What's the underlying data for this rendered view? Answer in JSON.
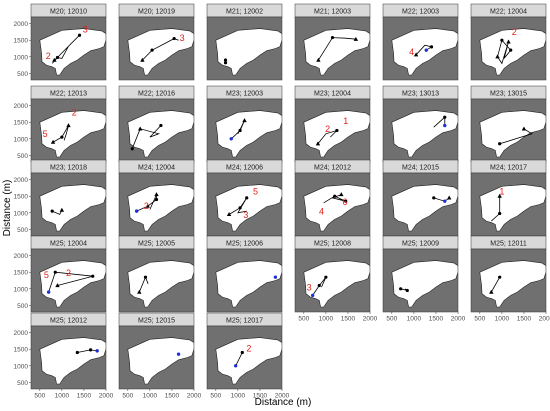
{
  "chart_data": {
    "type": "scatter",
    "layout": "faceted small multiples with path lines",
    "xlabel": "Distance (m)",
    "ylabel": "Distance (m)",
    "xlim": [
      300,
      2000
    ],
    "ylim": [
      300,
      2200
    ],
    "x_ticks": [
      500,
      1000,
      1500,
      2000
    ],
    "y_ticks": [
      500,
      1000,
      1500,
      2000
    ],
    "colors": {
      "panel_background": "#707070",
      "water": "#ffffff",
      "strip": "#d9d9d9",
      "path": "#000000",
      "label": "#e0211b",
      "end_point": "#1c2fd8"
    },
    "panels": [
      {
        "title": "M20; 12010",
        "points": [
          [
            830,
            900
          ],
          [
            900,
            980
          ],
          [
            1000,
            950
          ],
          [
            1150,
            1320
          ],
          [
            1400,
            1650
          ],
          [
            950,
            1050
          ],
          [
            780,
            800
          ]
        ],
        "markers": [
          [
            830,
            900,
            "tri"
          ],
          [
            900,
            980,
            "dot"
          ],
          [
            1400,
            1650,
            "dot"
          ]
        ],
        "labels": [
          [
            "2",
            690,
            930
          ],
          [
            "3",
            1530,
            1740
          ]
        ],
        "end": []
      },
      {
        "title": "M20; 12019",
        "points": [
          [
            830,
            900
          ],
          [
            1050,
            1200
          ],
          [
            1550,
            1550
          ],
          [
            1650,
            1500
          ]
        ],
        "markers": [
          [
            830,
            900,
            "tri"
          ],
          [
            1050,
            1200,
            "dot"
          ],
          [
            1550,
            1550,
            "dot"
          ]
        ],
        "labels": [
          [
            "3",
            1730,
            1470
          ]
        ],
        "end": []
      },
      {
        "title": "M21; 12002",
        "points": [
          [
            720,
            820
          ],
          [
            720,
            950
          ],
          [
            720,
            900
          ]
        ],
        "markers": [
          [
            720,
            820,
            "dot"
          ],
          [
            720,
            900,
            "dot"
          ]
        ],
        "labels": [],
        "end": []
      },
      {
        "title": "M21; 12003",
        "points": [
          [
            830,
            900
          ],
          [
            1150,
            1580
          ],
          [
            1450,
            1560
          ],
          [
            1680,
            1530
          ]
        ],
        "markers": [
          [
            830,
            900,
            "tri"
          ],
          [
            1150,
            1580,
            "dot"
          ],
          [
            1680,
            1530,
            "tri"
          ]
        ],
        "labels": [],
        "end": []
      },
      {
        "title": "M22; 12003",
        "points": [
          [
            1050,
            1060
          ],
          [
            1250,
            1350
          ],
          [
            1400,
            1300
          ],
          [
            1280,
            1200
          ]
        ],
        "markers": [
          [
            1050,
            1060,
            "tri"
          ],
          [
            1400,
            1300,
            "dot"
          ]
        ],
        "labels": [
          [
            "4",
            950,
            1060
          ]
        ],
        "end": [
          [
            1280,
            1200
          ]
        ]
      },
      {
        "title": "M22; 12004",
        "points": [
          [
            900,
            1000
          ],
          [
            1000,
            1500
          ],
          [
            1200,
            1200
          ],
          [
            1050,
            950
          ],
          [
            1150,
            1450
          ],
          [
            1000,
            800
          ],
          [
            900,
            1000
          ]
        ],
        "markers": [
          [
            900,
            1000,
            "tri"
          ],
          [
            1000,
            1500,
            "dot"
          ],
          [
            1200,
            1200,
            "dot"
          ],
          [
            1150,
            1450,
            "tri"
          ]
        ],
        "labels": [
          [
            "2",
            1280,
            1650
          ]
        ],
        "end": []
      },
      {
        "title": "M22; 12013",
        "points": [
          [
            800,
            900
          ],
          [
            1000,
            1050
          ],
          [
            1150,
            1400
          ],
          [
            1100,
            1150
          ],
          [
            1050,
            950
          ]
        ],
        "markers": [
          [
            800,
            900,
            "tri"
          ],
          [
            1000,
            1050,
            "dot"
          ],
          [
            1150,
            1400,
            "tri"
          ]
        ],
        "labels": [
          [
            "2",
            1280,
            1700
          ],
          [
            "5",
            620,
            1050
          ]
        ],
        "end": []
      },
      {
        "title": "M22; 12016",
        "points": [
          [
            600,
            700
          ],
          [
            780,
            1300
          ],
          [
            1200,
            1150
          ],
          [
            1000,
            1050
          ],
          [
            1250,
            1400
          ]
        ],
        "markers": [
          [
            600,
            700,
            "dot"
          ],
          [
            780,
            1300,
            "tri"
          ],
          [
            1250,
            1400,
            "dot"
          ]
        ],
        "labels": [],
        "end": []
      },
      {
        "title": "M23; 12003",
        "points": [
          [
            850,
            1000
          ],
          [
            1050,
            1250
          ],
          [
            1150,
            1550
          ],
          [
            1000,
            1150
          ]
        ],
        "markers": [
          [
            1050,
            1250,
            "dot"
          ],
          [
            1150,
            1550,
            "tri"
          ]
        ],
        "labels": [],
        "end": [
          [
            850,
            1000
          ]
        ]
      },
      {
        "title": "M23; 12004",
        "points": [
          [
            820,
            850
          ],
          [
            1000,
            1150
          ],
          [
            1250,
            1250
          ],
          [
            1100,
            1050
          ]
        ],
        "markers": [
          [
            820,
            850,
            "tri"
          ],
          [
            1250,
            1250,
            "dot"
          ]
        ],
        "labels": [
          [
            "2",
            1040,
            1200
          ],
          [
            "1",
            1450,
            1450
          ]
        ],
        "end": []
      },
      {
        "title": "M23; 13013",
        "points": [
          [
            1450,
            1350
          ],
          [
            1700,
            1650
          ],
          [
            1700,
            1400
          ]
        ],
        "markers": [
          [
            1700,
            1650,
            "dot"
          ]
        ],
        "labels": [],
        "end": [
          [
            1700,
            1400
          ]
        ]
      },
      {
        "title": "M23; 13015",
        "points": [
          [
            950,
            850
          ],
          [
            1680,
            1150
          ],
          [
            1500,
            1300
          ]
        ],
        "markers": [
          [
            950,
            850,
            "dot"
          ],
          [
            1500,
            1300,
            "tri"
          ]
        ],
        "labels": [],
        "end": []
      },
      {
        "title": "M23; 12018",
        "points": [
          [
            780,
            1050
          ],
          [
            950,
            950
          ],
          [
            1000,
            1080
          ]
        ],
        "markers": [
          [
            780,
            1050,
            "dot"
          ],
          [
            1000,
            1080,
            "tri"
          ]
        ],
        "labels": [],
        "end": []
      },
      {
        "title": "M24; 12004",
        "points": [
          [
            700,
            1050
          ],
          [
            950,
            1200
          ],
          [
            1150,
            1400
          ],
          [
            1150,
            1550
          ],
          [
            1000,
            1100
          ]
        ],
        "markers": [
          [
            950,
            1200,
            "tri"
          ],
          [
            1150,
            1400,
            "dot"
          ],
          [
            1150,
            1550,
            "tri"
          ]
        ],
        "labels": [
          [
            "2",
            920,
            1120
          ]
        ],
        "end": [
          [
            700,
            1050
          ]
        ]
      },
      {
        "title": "M24; 12006",
        "points": [
          [
            800,
            950
          ],
          [
            1050,
            1150
          ],
          [
            1200,
            1450
          ],
          [
            1000,
            1000
          ],
          [
            1200,
            1050
          ]
        ],
        "markers": [
          [
            800,
            950,
            "tri"
          ],
          [
            1050,
            1150,
            "dot"
          ],
          [
            1200,
            1450,
            "dot"
          ]
        ],
        "labels": [
          [
            "5",
            1400,
            1550
          ],
          [
            "3",
            1180,
            850
          ]
        ],
        "end": []
      },
      {
        "title": "M24; 12012",
        "points": [
          [
            950,
            1300
          ],
          [
            1200,
            1500
          ],
          [
            1450,
            1350
          ],
          [
            1150,
            1450
          ],
          [
            1350,
            1550
          ]
        ],
        "markers": [
          [
            1200,
            1500,
            "dot"
          ],
          [
            1450,
            1350,
            "dot"
          ],
          [
            1350,
            1550,
            "tri"
          ]
        ],
        "labels": [
          [
            "4",
            900,
            950
          ],
          [
            "6",
            1430,
            1230
          ]
        ],
        "end": []
      },
      {
        "title": "M24; 12015",
        "points": [
          [
            1450,
            1450
          ],
          [
            1700,
            1350
          ],
          [
            1800,
            1450
          ]
        ],
        "markers": [
          [
            1450,
            1450,
            "dot"
          ],
          [
            1800,
            1450,
            "tri"
          ]
        ],
        "labels": [],
        "end": [
          [
            1700,
            1350
          ]
        ]
      },
      {
        "title": "M24; 12017",
        "points": [
          [
            760,
            750
          ],
          [
            950,
            980
          ],
          [
            950,
            1500
          ]
        ],
        "markers": [
          [
            950,
            980,
            "dot"
          ],
          [
            950,
            1500,
            "tri"
          ]
        ],
        "labels": [
          [
            "1",
            1000,
            1550
          ]
        ],
        "end": []
      },
      {
        "title": "M25; 12004",
        "points": [
          [
            700,
            900
          ],
          [
            850,
            1500
          ],
          [
            1700,
            1380
          ],
          [
            900,
            1100
          ]
        ],
        "markers": [
          [
            850,
            1500,
            "dot"
          ],
          [
            1700,
            1380,
            "dot"
          ],
          [
            900,
            1100,
            "tri"
          ]
        ],
        "labels": [
          [
            "5",
            650,
            1320
          ],
          [
            "2",
            1150,
            1380
          ]
        ],
        "end": [
          [
            700,
            900
          ]
        ]
      },
      {
        "title": "M25; 12005",
        "points": [
          [
            760,
            900
          ],
          [
            900,
            1350
          ],
          [
            960,
            1150
          ]
        ],
        "markers": [
          [
            760,
            900,
            "tri"
          ],
          [
            900,
            1350,
            "dot"
          ]
        ],
        "labels": [],
        "end": []
      },
      {
        "title": "M25; 12006",
        "points": [],
        "markers": [],
        "labels": [],
        "end": [
          [
            1850,
            1350
          ]
        ]
      },
      {
        "title": "M25; 12008",
        "points": [
          [
            700,
            800
          ],
          [
            850,
            1100
          ],
          [
            1000,
            1350
          ],
          [
            900,
            1050
          ]
        ],
        "markers": [
          [
            850,
            1100,
            "dot"
          ],
          [
            1000,
            1350,
            "dot"
          ]
        ],
        "labels": [
          [
            "3",
            620,
            950
          ]
        ],
        "end": [
          [
            700,
            800
          ]
        ]
      },
      {
        "title": "M25; 12009",
        "points": [
          [
            700,
            1000
          ],
          [
            850,
            950
          ],
          [
            800,
            1000
          ]
        ],
        "markers": [
          [
            700,
            1000,
            "dot"
          ],
          [
            850,
            950,
            "dot"
          ]
        ],
        "labels": [],
        "end": []
      },
      {
        "title": "M25; 12011",
        "points": [
          [
            760,
            900
          ],
          [
            950,
            1350
          ]
        ],
        "markers": [
          [
            760,
            900,
            "tri"
          ],
          [
            950,
            1350,
            "dot"
          ]
        ],
        "labels": [],
        "end": []
      },
      {
        "title": "M25; 12012",
        "points": [
          [
            1350,
            1400
          ],
          [
            1650,
            1480
          ],
          [
            1800,
            1450
          ]
        ],
        "markers": [
          [
            1350,
            1400,
            "dot"
          ],
          [
            1650,
            1480,
            "dot"
          ]
        ],
        "labels": [],
        "end": [
          [
            1800,
            1450
          ]
        ]
      },
      {
        "title": "M25; 12015",
        "points": [],
        "markers": [],
        "labels": [],
        "end": [
          [
            1650,
            1350
          ]
        ]
      },
      {
        "title": "M25; 12017",
        "points": [
          [
            950,
            1000
          ],
          [
            1100,
            1400
          ]
        ],
        "markers": [
          [
            1100,
            1400,
            "dot"
          ]
        ],
        "labels": [
          [
            "2",
            1250,
            1430
          ]
        ],
        "end": [
          [
            950,
            1000
          ]
        ]
      }
    ],
    "coastline": [
      [
        500,
        1500
      ],
      [
        1000,
        1800
      ],
      [
        1500,
        1850
      ],
      [
        1900,
        1780
      ],
      [
        2000,
        1700
      ],
      [
        2000,
        1500
      ],
      [
        1950,
        1300
      ],
      [
        1850,
        1250
      ],
      [
        1650,
        1180
      ],
      [
        1500,
        1050
      ],
      [
        1350,
        900
      ],
      [
        1200,
        800
      ],
      [
        1050,
        650
      ],
      [
        950,
        450
      ],
      [
        880,
        450
      ],
      [
        850,
        650
      ],
      [
        770,
        700
      ],
      [
        650,
        750
      ],
      [
        550,
        850
      ],
      [
        540,
        1100
      ],
      [
        520,
        1300
      ]
    ]
  }
}
